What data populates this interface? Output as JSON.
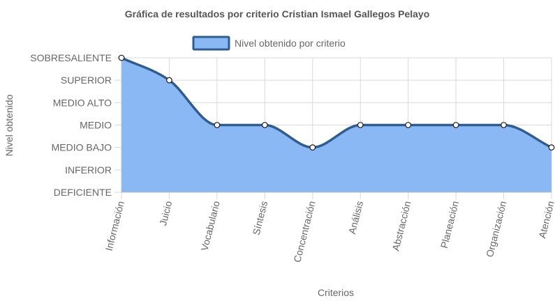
{
  "chart_data": {
    "type": "area",
    "title": "Gráfica de resultados por criterio Cristian Ismael Gallegos Pelayo",
    "xlabel": "Criterios",
    "ylabel": "Nivel obtenido",
    "y_levels": [
      "DEFICIENTE",
      "INFERIOR",
      "MEDIO BAJO",
      "MEDIO",
      "MEDIO ALTO",
      "SUPERIOR",
      "SOBRESALIENTE"
    ],
    "categories": [
      "Información",
      "Juicio",
      "Vocabulario",
      "Síntesis",
      "Concentración",
      "Análisis",
      "Abstracción",
      "Planeación",
      "Organización",
      "Atención"
    ],
    "series": [
      {
        "name": "Nivel obtenido por criterio",
        "values": [
          "SOBRESALIENTE",
          "SUPERIOR",
          "MEDIO",
          "MEDIO",
          "MEDIO BAJO",
          "MEDIO",
          "MEDIO",
          "MEDIO",
          "MEDIO",
          "MEDIO BAJO"
        ]
      }
    ],
    "grid": true,
    "legend_position": "top",
    "colors": {
      "fill": "#8ab8f5",
      "line": "#2f5d91",
      "point_fill": "#ffffff",
      "point_stroke": "#1a1a1a",
      "grid": "#d9d9d9",
      "text": "#666666"
    }
  }
}
